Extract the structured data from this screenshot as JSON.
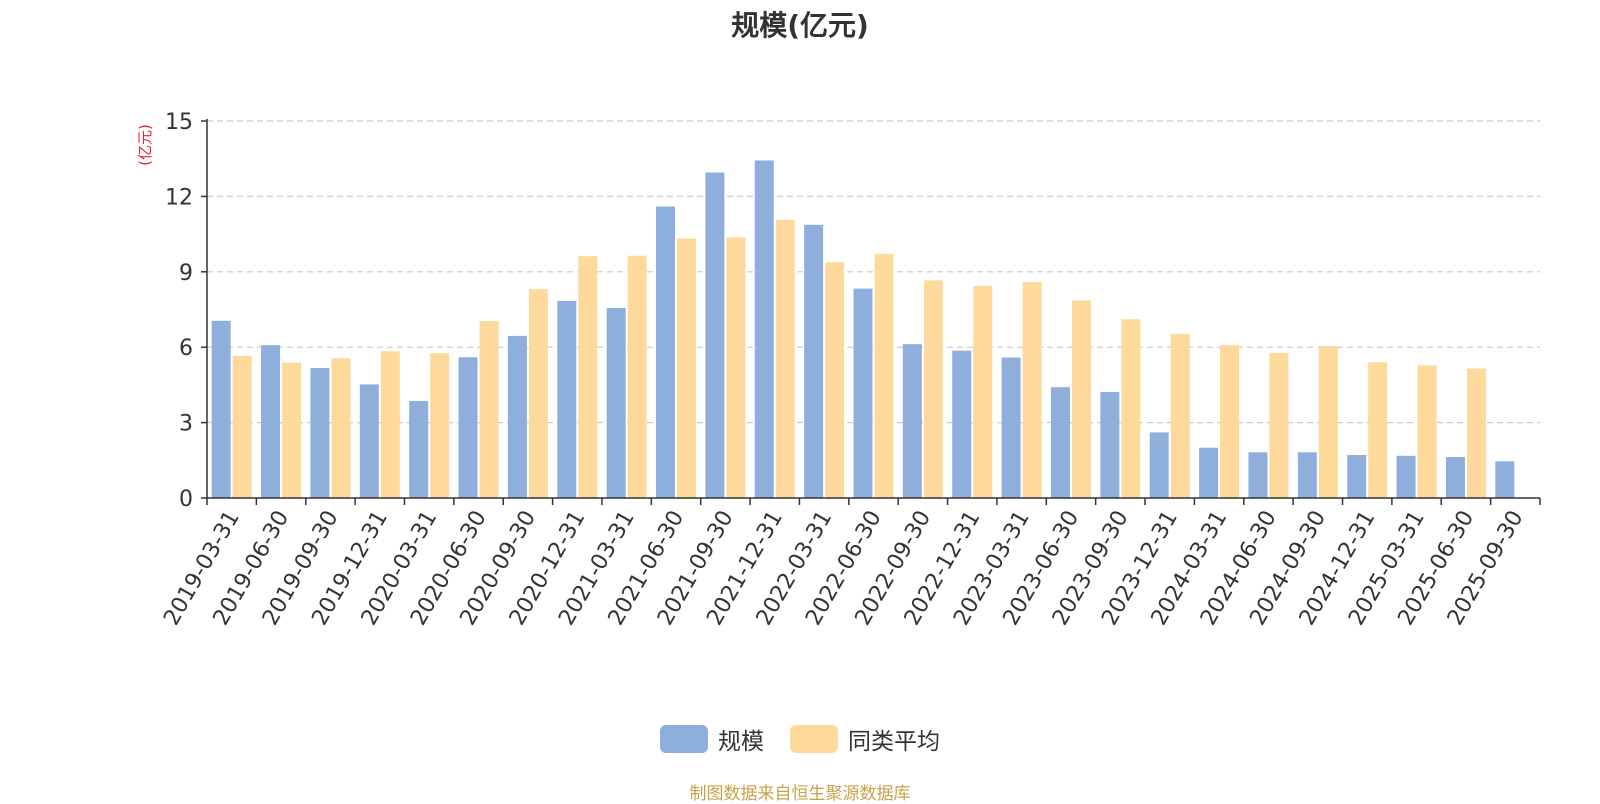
{
  "chart_data": {
    "type": "bar",
    "title": "规模(亿元)",
    "ylabel": "(亿元)",
    "ylim": [
      0,
      15
    ],
    "yticks": [
      0,
      3,
      6,
      9,
      12,
      15
    ],
    "grid": true,
    "legend_position": "bottom-center",
    "categories": [
      "2019-03-31",
      "2019-06-30",
      "2019-09-30",
      "2019-12-31",
      "2020-03-31",
      "2020-06-30",
      "2020-09-30",
      "2020-12-31",
      "2021-03-31",
      "2021-06-30",
      "2021-09-30",
      "2021-12-31",
      "2022-03-31",
      "2022-06-30",
      "2022-09-30",
      "2022-12-31",
      "2023-03-31",
      "2023-06-30",
      "2023-09-30",
      "2023-12-31",
      "2024-03-31",
      "2024-06-30",
      "2024-09-30",
      "2024-12-31",
      "2025-03-31",
      "2025-06-30",
      "2025-09-30"
    ],
    "series": [
      {
        "name": "规模",
        "color": "#8eafdc",
        "values": [
          7.05,
          6.08,
          5.17,
          4.52,
          3.86,
          5.6,
          6.45,
          7.84,
          7.56,
          11.6,
          12.95,
          13.43,
          10.87,
          8.33,
          6.12,
          5.86,
          5.59,
          4.41,
          4.22,
          2.61,
          2.0,
          1.82,
          1.82,
          1.71,
          1.68,
          1.63,
          1.46
        ]
      },
      {
        "name": "同类平均",
        "color": "#fdd99b",
        "values": [
          5.66,
          5.39,
          5.56,
          5.84,
          5.76,
          7.04,
          8.31,
          9.62,
          9.64,
          10.33,
          10.37,
          11.07,
          9.38,
          9.72,
          8.66,
          8.44,
          8.6,
          7.86,
          7.11,
          6.53,
          6.08,
          5.77,
          6.05,
          5.4,
          5.28,
          5.15,
          null
        ]
      }
    ]
  },
  "footer": {
    "source": "制图数据来自恒生聚源数据库"
  }
}
